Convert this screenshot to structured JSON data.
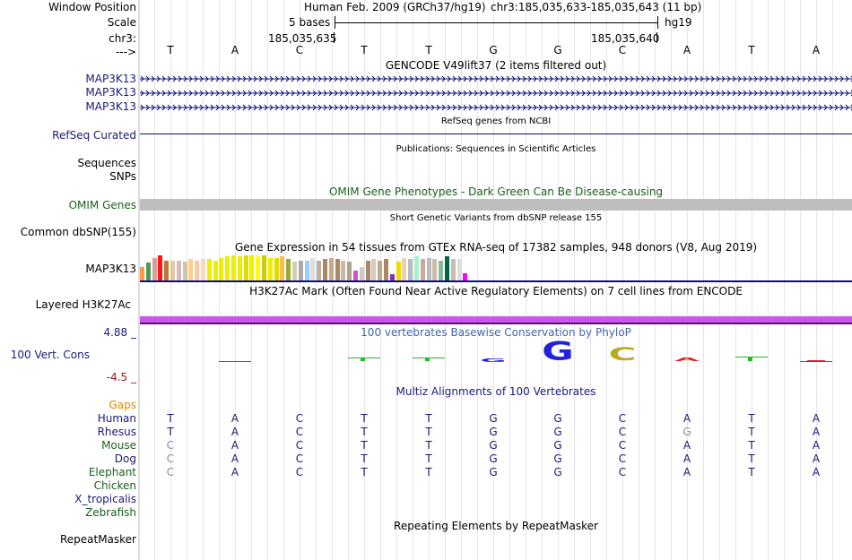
{
  "header": {
    "window_position_label": "Window Position",
    "scale_label": "Scale",
    "chrom_label": "chr3:",
    "strand_label": "--->",
    "assembly": "Human Feb. 2009 (GRCh37/hg19)",
    "position": "chr3:185,035,633-185,035,643 (11 bp)",
    "scale_text": "5 bases",
    "db": "hg19",
    "coord_left": "185,035,635",
    "coord_right": "185,035,640"
  },
  "sequence": [
    "T",
    "A",
    "C",
    "T",
    "T",
    "G",
    "G",
    "C",
    "A",
    "T",
    "A"
  ],
  "tracks": {
    "gencode": {
      "title": "GENCODE V49lift37 (2 items filtered out)",
      "items": [
        "MAP3K13",
        "MAP3K13",
        "MAP3K13"
      ],
      "color": "#0c0c78"
    },
    "refseq": {
      "title": "RefSeq genes from NCBI",
      "label": "RefSeq Curated",
      "color": "#0c0c78"
    },
    "publications": {
      "title": "Publications: Sequences in Scientific Articles",
      "labels": [
        "Sequences",
        "SNPs"
      ]
    },
    "omim": {
      "title": "OMIM Gene Phenotypes - Dark Green Can Be Disease-causing",
      "label": "OMIM Genes",
      "color": "#1c5e1c",
      "bar_color": "#bebebe"
    },
    "dbsnp": {
      "title": "Short Genetic Variants from dbSNP release 155",
      "label": "Common dbSNP(155)"
    },
    "gtex": {
      "title": "Gene Expression in 54 tissues from GTEx RNA-seq of 17382 samples, 948 donors (V8, Aug 2019)",
      "label": "MAP3K13",
      "levels": [
        0.55,
        0.7,
        0.9,
        1.0,
        0.8,
        0.8,
        0.8,
        0.75,
        0.85,
        0.8,
        0.85,
        0.85,
        0.8,
        0.9,
        0.95,
        1.0,
        0.95,
        1.0,
        1.0,
        0.95,
        1.0,
        0.9,
        0.9,
        0.95,
        0.85,
        0.75,
        0.8,
        0.8,
        0.9,
        0.8,
        0.85,
        0.9,
        0.85,
        0.8,
        0.75,
        0.4,
        0.55,
        0.8,
        0.85,
        0.8,
        0.85,
        0.25,
        0.75,
        0.9,
        0.85,
        0.95,
        0.85,
        0.9,
        0.85,
        0.8,
        0.95,
        0.85,
        0.85,
        0.3
      ],
      "colors": [
        "#ff9944",
        "#4c9a5a",
        "#dd9d9d",
        "#ff1515",
        "#bb7733",
        "#e0c8a8",
        "#d8b8b8",
        "#c8c8b0",
        "#ffd088",
        "#ffc8a8",
        "#ffd8b8",
        "#eeee00",
        "#eeee00",
        "#eeee00",
        "#eeee00",
        "#eeee00",
        "#eeee00",
        "#dddd00",
        "#eeee00",
        "#ffff00",
        "#cccc00",
        "#eeee00",
        "#dddd00",
        "#ffbb55",
        "#99aa33",
        "#d0d0b0",
        "#aaaaaa",
        "#99ccff",
        "#dddddd",
        "#c0b0a0",
        "#aa8866",
        "#c8a888",
        "#aa8866",
        "#ccb8a0",
        "#b0a090",
        "#cc55cc",
        "#cccccc",
        "#aa8866",
        "#d8c8b8",
        "#c0a888",
        "#a88868",
        "#8833aa",
        "#eedd00",
        "#e8d0b8",
        "#bbbbbb",
        "#aaeecc",
        "#ccaa99",
        "#bbbbbb",
        "#ccbbaa",
        "#88bb99",
        "#006644",
        "#ccbbaa",
        "#dddddd",
        "#ff00ff"
      ]
    },
    "h3k27ac": {
      "title": "H3K27Ac Mark (Often Found Near Active Regulatory Elements) on 7 cell lines from ENCODE",
      "label": "Layered H3K27Ac",
      "color": "#cc55ee"
    },
    "phylop": {
      "title": "100 vertebrates Basewise Conservation by PhyloP",
      "label": "100 Vert. Cons",
      "max": "4.88 _",
      "min": "-4.5 _",
      "title_color": "#4466aa",
      "min_color": "#8b1a1a"
    },
    "multiz": {
      "title": "Multiz Alignments of 100 Vertebrates",
      "gaps_label": "Gaps",
      "species": [
        {
          "name": "Human",
          "bases": [
            "T",
            "A",
            "C",
            "T",
            "T",
            "G",
            "G",
            "C",
            "A",
            "T",
            "A"
          ],
          "dim": []
        },
        {
          "name": "Rhesus",
          "bases": [
            "T",
            "A",
            "C",
            "T",
            "T",
            "G",
            "G",
            "C",
            "G",
            "T",
            "A"
          ],
          "dim": [
            8
          ]
        },
        {
          "name": "Mouse",
          "bases": [
            "C",
            "A",
            "C",
            "T",
            "T",
            "G",
            "G",
            "C",
            "A",
            "T",
            "A"
          ],
          "dim": [
            0
          ]
        },
        {
          "name": "Dog",
          "bases": [
            "C",
            "A",
            "C",
            "T",
            "T",
            "G",
            "G",
            "C",
            "A",
            "T",
            "A"
          ],
          "dim": [
            0
          ]
        },
        {
          "name": "Elephant",
          "bases": [
            "C",
            "A",
            "C",
            "T",
            "T",
            "G",
            "G",
            "C",
            "A",
            "T",
            "A"
          ],
          "dim": [
            0
          ]
        },
        {
          "name": "Chicken",
          "bases": [],
          "dim": []
        },
        {
          "name": "X_tropicalis",
          "bases": [],
          "dim": []
        },
        {
          "name": "Zebrafish",
          "bases": [],
          "dim": []
        }
      ],
      "gaps_color": "#dd8800"
    },
    "repeatmasker": {
      "title": "Repeating Elements by RepeatMasker",
      "label": "RepeatMasker"
    }
  }
}
